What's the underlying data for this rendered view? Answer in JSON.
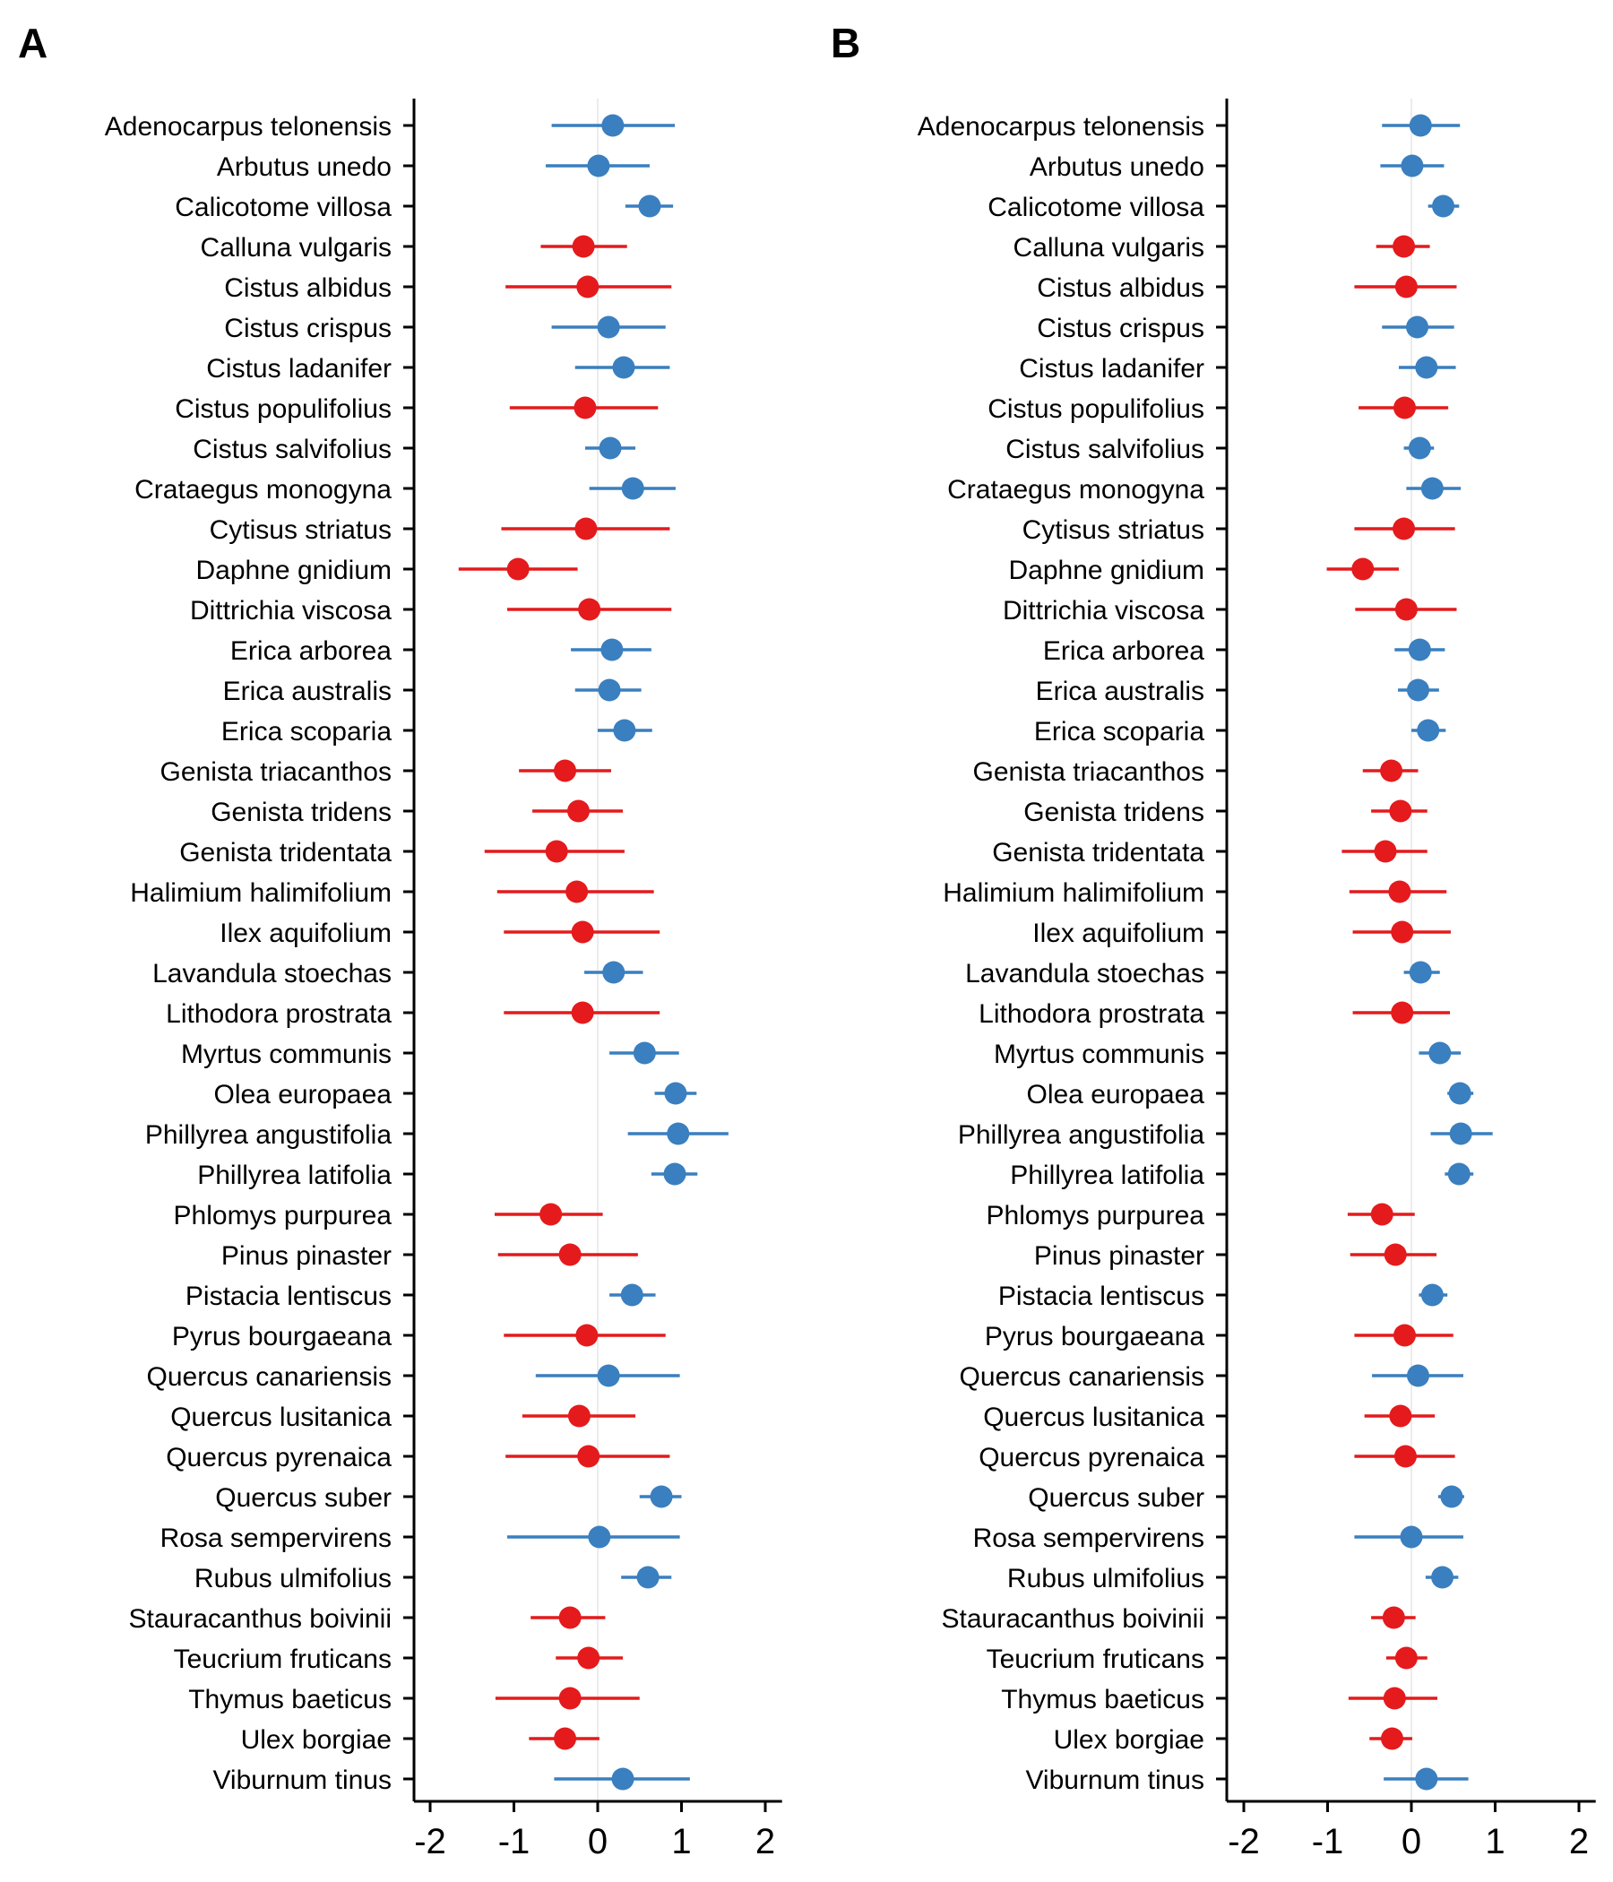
{
  "panels": [
    "A",
    "B"
  ],
  "colors": {
    "positive": "#3a7fbf",
    "negative": "#e41a1c",
    "zero_line": "#e6e6e6",
    "axis": "#000000"
  },
  "chart_data": [
    {
      "type": "scatter",
      "panel": "A",
      "xlim": [
        -2.2,
        2.2
      ],
      "xticks": [
        -2,
        -1,
        0,
        1,
        2
      ],
      "xtick_labels": [
        "-2",
        "-1",
        "0",
        "1",
        "2"
      ],
      "categories": [
        "Adenocarpus telonensis",
        "Arbutus unedo",
        "Calicotome villosa",
        "Calluna vulgaris",
        "Cistus albidus",
        "Cistus crispus",
        "Cistus ladanifer",
        "Cistus populifolius",
        "Cistus salvifolius",
        "Crataegus monogyna",
        "Cytisus striatus",
        "Daphne gnidium",
        "Dittrichia viscosa",
        "Erica arborea",
        "Erica australis",
        "Erica scoparia",
        "Genista triacanthos",
        "Genista tridens",
        "Genista tridentata",
        "Halimium halimifolium",
        "Ilex aquifolium",
        "Lavandula stoechas",
        "Lithodora prostrata",
        "Myrtus communis",
        "Olea europaea",
        "Phillyrea angustifolia",
        "Phillyrea latifolia",
        "Phlomys purpurea",
        "Pinus pinaster",
        "Pistacia lentiscus",
        "Pyrus bourgaeana",
        "Quercus canariensis",
        "Quercus lusitanica",
        "Quercus pyrenaica",
        "Quercus suber",
        "Rosa sempervirens",
        "Rubus ulmifolius",
        "Stauracanthus boivinii",
        "Teucrium fruticans",
        "Thymus baeticus",
        "Ulex borgiae",
        "Viburnum tinus"
      ],
      "estimate": [
        0.18,
        0.01,
        0.62,
        -0.17,
        -0.12,
        0.13,
        0.31,
        -0.15,
        0.15,
        0.42,
        -0.14,
        -0.95,
        -0.1,
        0.17,
        0.14,
        0.32,
        -0.39,
        -0.23,
        -0.49,
        -0.25,
        -0.18,
        0.19,
        -0.18,
        0.56,
        0.93,
        0.96,
        0.92,
        -0.56,
        -0.33,
        0.41,
        -0.13,
        0.13,
        -0.22,
        -0.11,
        0.76,
        0.02,
        0.6,
        -0.33,
        -0.11,
        -0.33,
        -0.39,
        0.3
      ],
      "lower": [
        -0.55,
        -0.62,
        0.33,
        -0.68,
        -1.1,
        -0.55,
        -0.27,
        -1.05,
        -0.15,
        -0.1,
        -1.15,
        -1.66,
        -1.08,
        -0.32,
        -0.27,
        0.0,
        -0.94,
        -0.78,
        -1.35,
        -1.2,
        -1.12,
        -0.16,
        -1.12,
        0.14,
        0.68,
        0.36,
        0.64,
        -1.23,
        -1.19,
        0.14,
        -1.12,
        -0.74,
        -0.9,
        -1.1,
        0.5,
        -1.08,
        0.28,
        -0.8,
        -0.5,
        -1.22,
        -0.82,
        -0.52
      ],
      "upper": [
        0.92,
        0.62,
        0.9,
        0.35,
        0.88,
        0.81,
        0.86,
        0.72,
        0.45,
        0.93,
        0.86,
        -0.24,
        0.88,
        0.64,
        0.52,
        0.65,
        0.16,
        0.3,
        0.32,
        0.67,
        0.74,
        0.54,
        0.74,
        0.97,
        1.18,
        1.56,
        1.19,
        0.06,
        0.48,
        0.69,
        0.81,
        0.98,
        0.45,
        0.86,
        1.0,
        0.98,
        0.88,
        0.09,
        0.3,
        0.5,
        0.02,
        1.1
      ]
    },
    {
      "type": "scatter",
      "panel": "B",
      "xlim": [
        -2.2,
        2.2
      ],
      "xticks": [
        -2,
        -1,
        0,
        1,
        2
      ],
      "xtick_labels": [
        "-2",
        "-1",
        "0",
        "1",
        "2"
      ],
      "categories": [
        "Adenocarpus telonensis",
        "Arbutus unedo",
        "Calicotome villosa",
        "Calluna vulgaris",
        "Cistus albidus",
        "Cistus crispus",
        "Cistus ladanifer",
        "Cistus populifolius",
        "Cistus salvifolius",
        "Crataegus monogyna",
        "Cytisus striatus",
        "Daphne gnidium",
        "Dittrichia viscosa",
        "Erica arborea",
        "Erica australis",
        "Erica scoparia",
        "Genista triacanthos",
        "Genista tridens",
        "Genista tridentata",
        "Halimium halimifolium",
        "Ilex aquifolium",
        "Lavandula stoechas",
        "Lithodora prostrata",
        "Myrtus communis",
        "Olea europaea",
        "Phillyrea angustifolia",
        "Phillyrea latifolia",
        "Phlomys purpurea",
        "Pinus pinaster",
        "Pistacia lentiscus",
        "Pyrus bourgaeana",
        "Quercus canariensis",
        "Quercus lusitanica",
        "Quercus pyrenaica",
        "Quercus suber",
        "Rosa sempervirens",
        "Rubus ulmifolius",
        "Stauracanthus boivinii",
        "Teucrium fruticans",
        "Thymus baeticus",
        "Ulex borgiae",
        "Viburnum tinus"
      ],
      "estimate": [
        0.11,
        0.01,
        0.38,
        -0.09,
        -0.06,
        0.07,
        0.18,
        -0.08,
        0.1,
        0.25,
        -0.09,
        -0.58,
        -0.06,
        0.1,
        0.08,
        0.2,
        -0.24,
        -0.13,
        -0.31,
        -0.14,
        -0.11,
        0.11,
        -0.11,
        0.34,
        0.58,
        0.59,
        0.57,
        -0.35,
        -0.19,
        0.25,
        -0.08,
        0.08,
        -0.13,
        -0.07,
        0.48,
        0.0,
        0.37,
        -0.21,
        -0.06,
        -0.2,
        -0.23,
        0.18
      ],
      "lower": [
        -0.35,
        -0.37,
        0.2,
        -0.42,
        -0.68,
        -0.35,
        -0.15,
        -0.63,
        -0.09,
        -0.06,
        -0.68,
        -1.01,
        -0.67,
        -0.2,
        -0.16,
        0.0,
        -0.58,
        -0.48,
        -0.83,
        -0.74,
        -0.7,
        -0.09,
        -0.7,
        0.09,
        0.43,
        0.23,
        0.4,
        -0.76,
        -0.73,
        0.09,
        -0.68,
        -0.47,
        -0.56,
        -0.68,
        0.32,
        -0.68,
        0.17,
        -0.48,
        -0.3,
        -0.75,
        -0.5,
        -0.33
      ],
      "upper": [
        0.58,
        0.39,
        0.57,
        0.22,
        0.54,
        0.51,
        0.53,
        0.44,
        0.27,
        0.59,
        0.52,
        -0.15,
        0.54,
        0.4,
        0.33,
        0.41,
        0.08,
        0.19,
        0.19,
        0.42,
        0.47,
        0.34,
        0.46,
        0.59,
        0.74,
        0.97,
        0.74,
        0.04,
        0.3,
        0.43,
        0.5,
        0.62,
        0.28,
        0.52,
        0.63,
        0.62,
        0.56,
        0.05,
        0.19,
        0.31,
        0.01,
        0.68
      ]
    }
  ]
}
